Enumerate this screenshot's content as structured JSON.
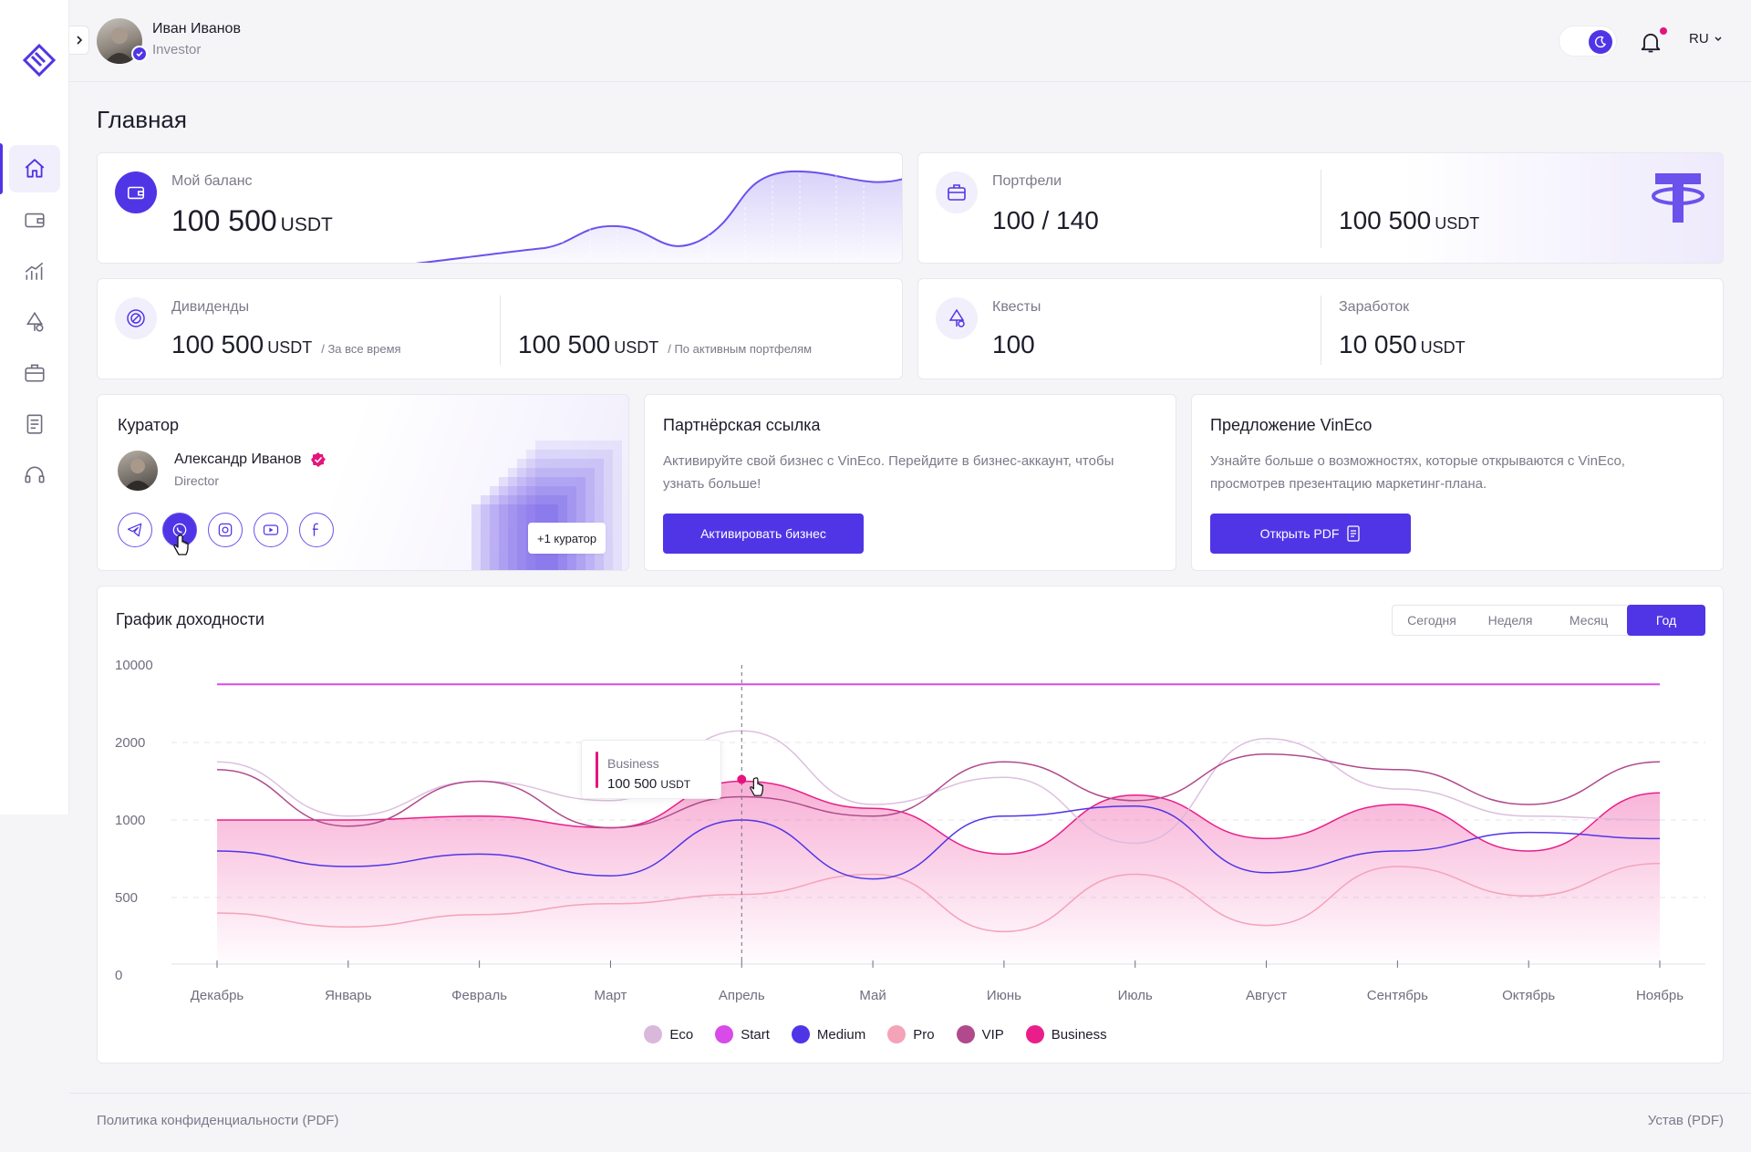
{
  "user": {
    "name": "Иван Иванов",
    "role": "Investor"
  },
  "header": {
    "lang": "RU"
  },
  "page_title": "Главная",
  "balance": {
    "label": "Мой баланс",
    "value": "100 500",
    "unit": "USDT"
  },
  "portfolios": {
    "label": "Портфели",
    "count": "100 / 140",
    "value": "100 500",
    "unit": "USDT"
  },
  "dividends": {
    "label": "Дивиденды",
    "total_value": "100 500",
    "total_unit": "USDT",
    "total_note": "/ За все время",
    "active_value": "100 500",
    "active_unit": "USDT",
    "active_note": "/ По активным портфелям"
  },
  "quests": {
    "label": "Квесты",
    "value": "100"
  },
  "earnings": {
    "label": "Заработок",
    "value": "10 050",
    "unit": "USDT"
  },
  "curator": {
    "title": "Куратор",
    "name": "Александр Иванов",
    "role": "Director",
    "more": "+1 куратор",
    "socials": [
      "telegram-icon",
      "whatsapp-icon",
      "instagram-icon",
      "youtube-icon",
      "facebook-icon"
    ]
  },
  "partner": {
    "title": "Партнёрская ссылка",
    "text1": "Активируйте свой бизнес с VinEco. Перейдите в бизнес-аккаунт, чтобы",
    "text2": "узнать больше!",
    "button": "Активировать бизнес"
  },
  "offer": {
    "title": "Предложение VinEco",
    "text1": "Узнайте больше о возможностях, которые открываются с VinEco,",
    "text2": "просмотрев презентацию маркетинг-плана.",
    "button": "Открыть PDF"
  },
  "chart_section": {
    "title": "График доходности",
    "tabs": [
      "Сегодня",
      "Неделя",
      "Месяц",
      "Год"
    ],
    "active_tab": "Год",
    "tooltip": {
      "series": "Business",
      "value": "100 500",
      "unit": "USDT"
    }
  },
  "chart_data": {
    "type": "area",
    "categories": [
      "Декабрь",
      "Январь",
      "Февраль",
      "Март",
      "Апрель",
      "Май",
      "Июнь",
      "Июль",
      "Август",
      "Сентябрь",
      "Октябрь",
      "Ноябрь"
    ],
    "y_ticks": [
      0,
      500,
      1000,
      2000,
      10000
    ],
    "series": [
      {
        "name": "Eco",
        "color": "#d9b8dc",
        "values": [
          1750,
          1050,
          1500,
          1250,
          3200,
          1200,
          1550,
          850,
          2400,
          1400,
          1050,
          1000
        ]
      },
      {
        "name": "Start",
        "color": "#d84be8",
        "values": [
          8000,
          8000,
          8000,
          8000,
          8000,
          8000,
          8000,
          8000,
          8000,
          8000,
          8000,
          8000
        ]
      },
      {
        "name": "Medium",
        "color": "#5035e6",
        "values": [
          800,
          700,
          780,
          640,
          1000,
          620,
          1050,
          1180,
          660,
          800,
          920,
          880
        ]
      },
      {
        "name": "Pro",
        "color": "#f4a3b8",
        "values": [
          400,
          310,
          390,
          460,
          520,
          650,
          280,
          650,
          320,
          700,
          510,
          720
        ]
      },
      {
        "name": "VIP",
        "color": "#b04a8c",
        "values": [
          1650,
          960,
          1500,
          950,
          1300,
          1050,
          1750,
          1250,
          1850,
          1650,
          1200,
          1750
        ]
      },
      {
        "name": "Business",
        "color": "#ea1e8a",
        "values": [
          1000,
          1000,
          1050,
          950,
          1500,
          1150,
          780,
          1320,
          880,
          1200,
          800,
          1350
        ]
      }
    ],
    "legend_position": "bottom"
  },
  "footer": {
    "privacy": "Политика конфиденциальности (PDF)",
    "charter": "Устав (PDF)"
  }
}
